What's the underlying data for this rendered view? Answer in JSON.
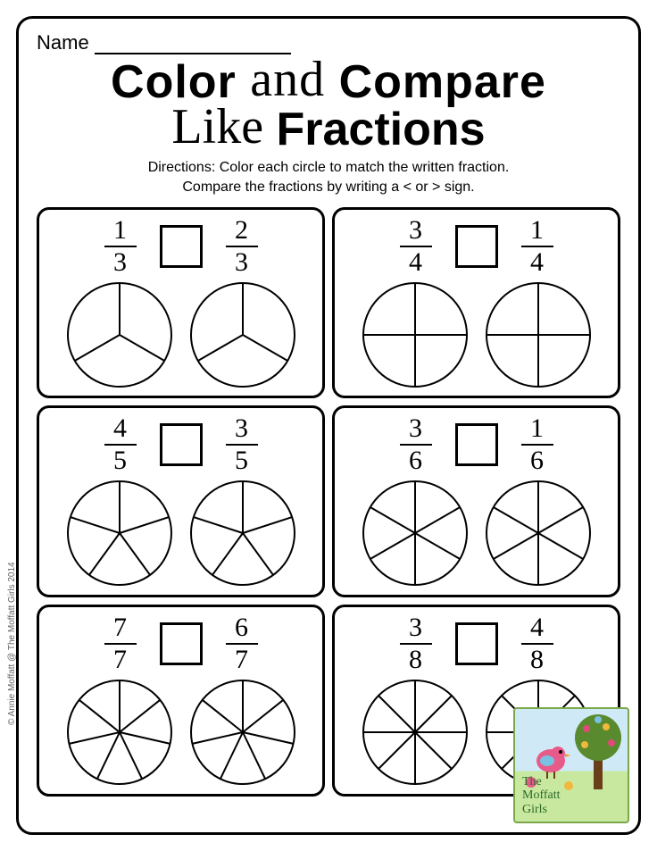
{
  "name_label": "Name",
  "title": {
    "line1_a": "Color",
    "line1_and": "and",
    "line1_b": "Compare",
    "line2_like": "Like",
    "line2_b": "Fractions"
  },
  "directions": {
    "line1": "Directions: Color each circle to match the written fraction.",
    "line2": "Compare the fractions by writing a < or > sign."
  },
  "copyright": "© Annie Moffatt @ The Moffatt Girls 2014",
  "logo": {
    "line1": "The",
    "line2": "Moffatt",
    "line3": "Girls"
  },
  "style": {
    "circle_radius": 58,
    "circle_stroke": "#000000",
    "circle_stroke_width": 2,
    "box_stroke": "#000000",
    "cell_border_radius": 14,
    "frame_border_radius": 18,
    "title_fontsize": 52,
    "script_fontsize": 56,
    "directions_fontsize": 16,
    "fraction_fontsize": 30
  },
  "problems": [
    {
      "left": {
        "num": "1",
        "den": "3",
        "slices": 3
      },
      "right": {
        "num": "2",
        "den": "3",
        "slices": 3
      }
    },
    {
      "left": {
        "num": "3",
        "den": "4",
        "slices": 4
      },
      "right": {
        "num": "1",
        "den": "4",
        "slices": 4
      }
    },
    {
      "left": {
        "num": "4",
        "den": "5",
        "slices": 5
      },
      "right": {
        "num": "3",
        "den": "5",
        "slices": 5
      }
    },
    {
      "left": {
        "num": "3",
        "den": "6",
        "slices": 6
      },
      "right": {
        "num": "1",
        "den": "6",
        "slices": 6
      }
    },
    {
      "left": {
        "num": "7",
        "den": "7",
        "slices": 7
      },
      "right": {
        "num": "6",
        "den": "7",
        "slices": 7
      }
    },
    {
      "left": {
        "num": "3",
        "den": "8",
        "slices": 8
      },
      "right": {
        "num": "4",
        "den": "8",
        "slices": 8
      }
    }
  ]
}
